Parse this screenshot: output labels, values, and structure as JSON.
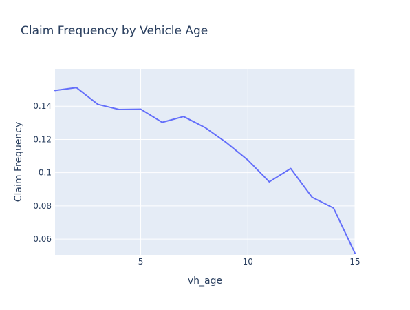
{
  "colors": {
    "background": "#ffffff",
    "plot_background": "#e5ecf6",
    "grid": "#ffffff",
    "text": "#2a3f5f",
    "line": "#636efa"
  },
  "chart_data": {
    "type": "line",
    "title": "Claim Frequency by Vehicle Age",
    "xlabel": "vh_age",
    "ylabel": "Claim Frequency",
    "xlim": [
      1,
      15
    ],
    "ylim": [
      0.0505,
      0.1625
    ],
    "grid": true,
    "legend": "none",
    "x_ticks": [
      5,
      10,
      15
    ],
    "x_tick_labels": [
      "5",
      "10",
      "15"
    ],
    "y_ticks": [
      0.06,
      0.08,
      0.1,
      0.12,
      0.14
    ],
    "y_tick_labels": [
      "0.06",
      "0.08",
      "0.1",
      "0.12",
      "0.14"
    ],
    "series": [
      {
        "x": [
          1,
          2,
          3,
          4,
          5,
          6,
          7,
          8,
          9,
          10,
          11,
          12,
          13,
          14,
          15
        ],
        "y": [
          0.1495,
          0.1512,
          0.1411,
          0.138,
          0.1382,
          0.1303,
          0.1338,
          0.1272,
          0.1181,
          0.1076,
          0.0945,
          0.1025,
          0.0852,
          0.0787,
          0.0515
        ]
      }
    ]
  }
}
